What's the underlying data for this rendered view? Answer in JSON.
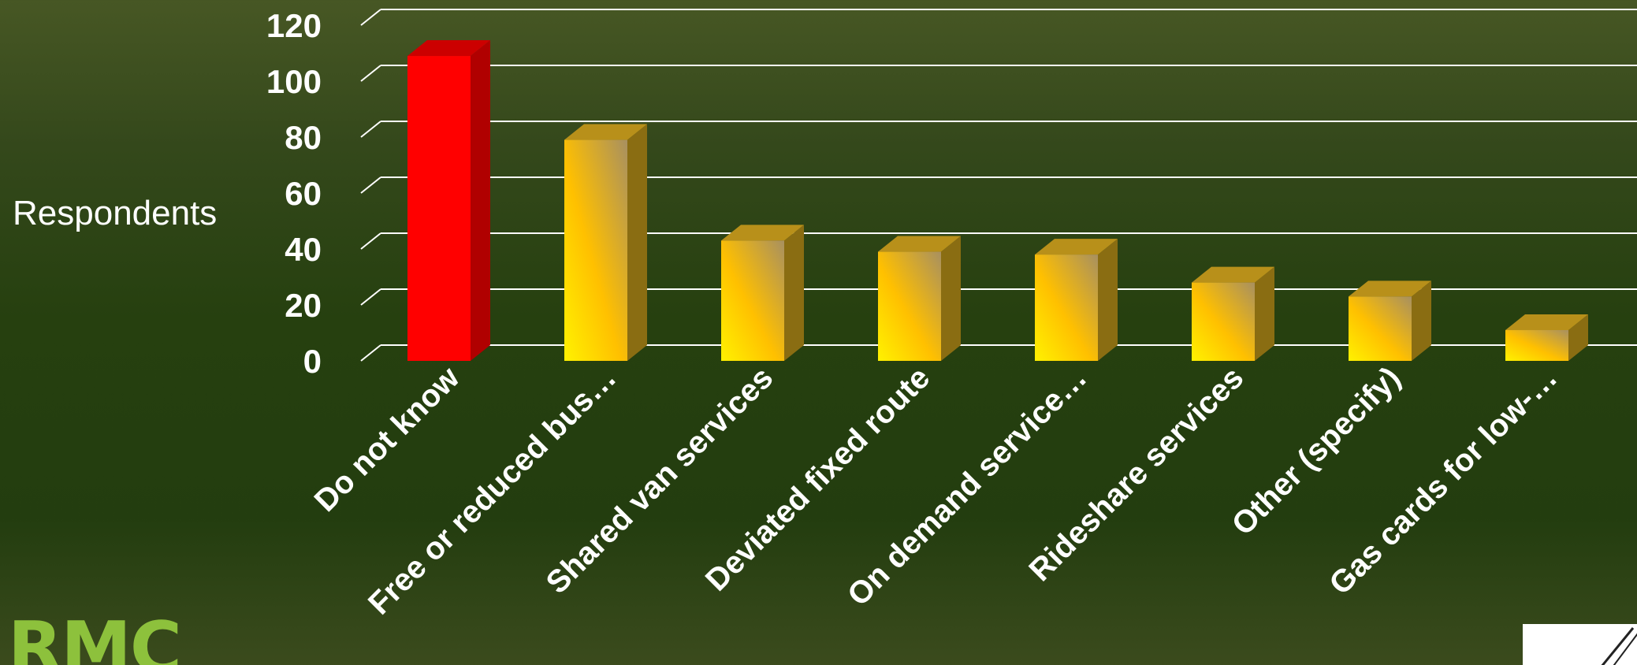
{
  "chart_data": {
    "type": "bar",
    "title": "",
    "xlabel": "",
    "ylabel": "Respondents",
    "ylim": [
      0,
      120
    ],
    "yticks": [
      "0",
      "20",
      "40",
      "60",
      "80",
      "100",
      "120"
    ],
    "categories": [
      "Do not know",
      "Free or reduced bus…",
      "Shared van services",
      "Deviated fixed route",
      "On demand service…",
      "Rideshare services",
      "Other (specify)",
      "Gas cards for low-…"
    ],
    "values": [
      109,
      79,
      43,
      39,
      38,
      28,
      23,
      11
    ],
    "grid": true,
    "legend": "none",
    "style": "3d-column",
    "colors": {
      "highlight": "#ff0000",
      "highlight_side": "#b00000",
      "highlight_top": "#cc0000",
      "bar_light": "#fff200",
      "bar_mid": "#ffc000",
      "bar_dark": "#a0882a",
      "bar_side": "#8a6d12",
      "bar_top": "#b8901a"
    }
  },
  "logo": {
    "text": "RMC"
  }
}
